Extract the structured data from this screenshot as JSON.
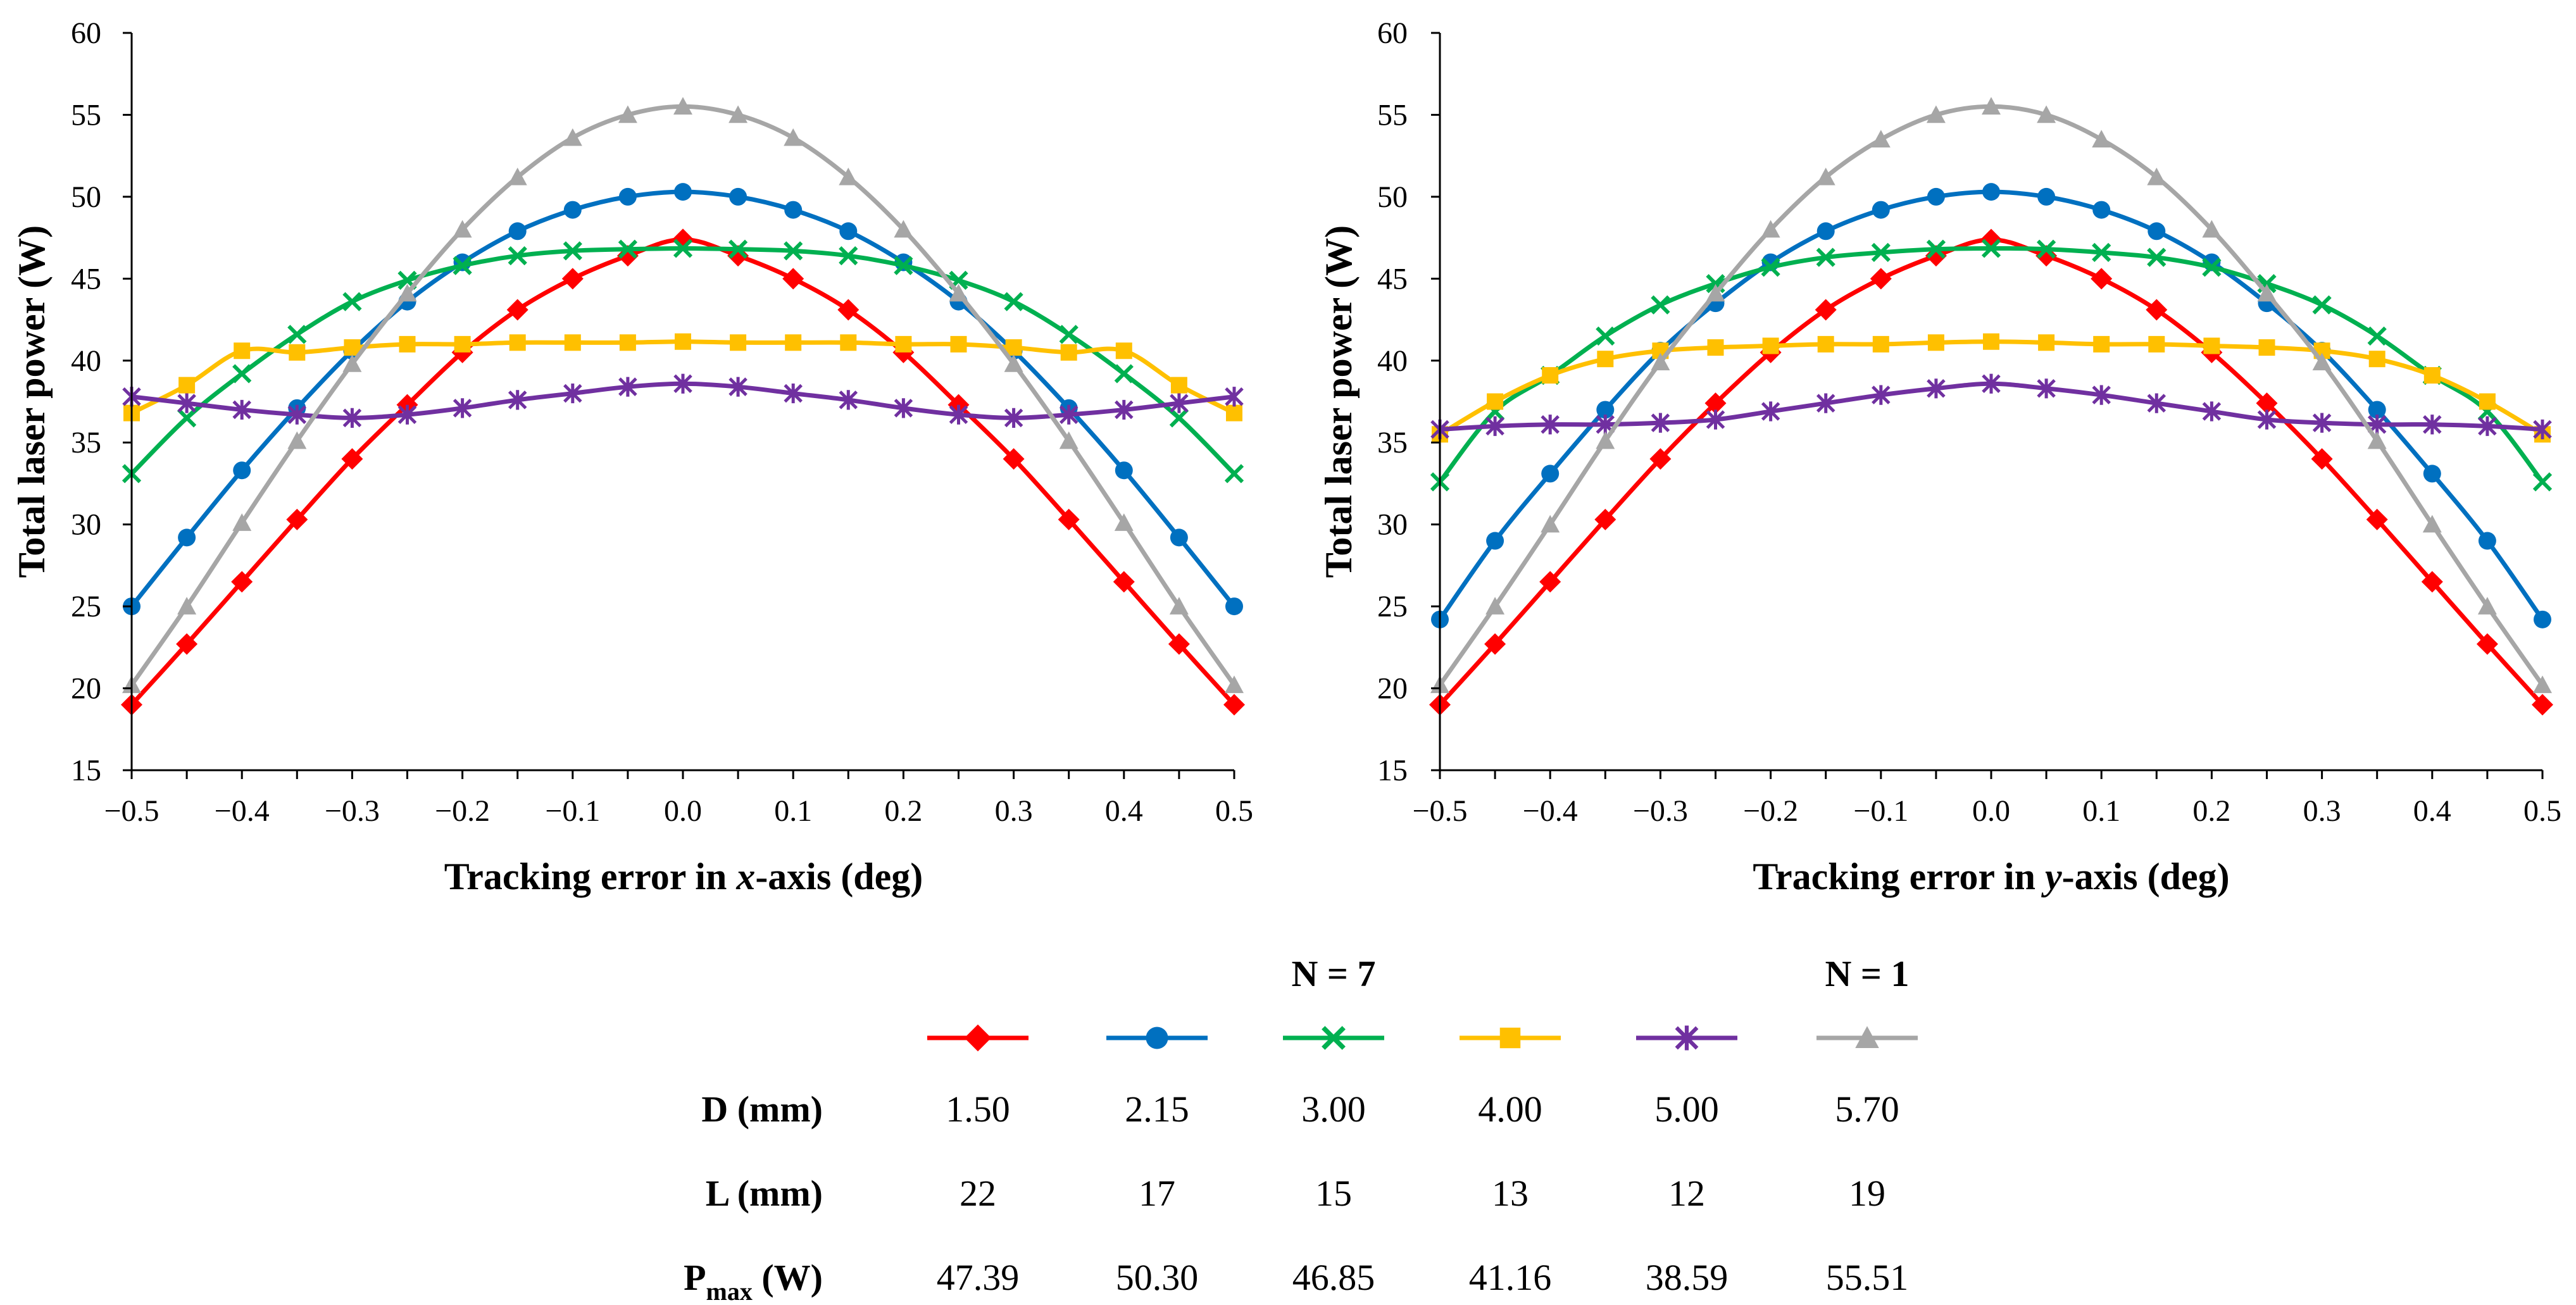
{
  "chart_data": [
    {
      "type": "line",
      "xlabel_prefix": "Tracking error in ",
      "xlabel_var": "x",
      "xlabel_suffix": "-axis (deg)",
      "ylabel": "Total laser power (W)",
      "xlim": [
        -0.5,
        0.5
      ],
      "ylim": [
        15,
        60
      ],
      "x_ticks": [
        "−0.5",
        "−0.4",
        "−0.3",
        "−0.2",
        "−0.1",
        "0.0",
        "0.1",
        "0.2",
        "0.3",
        "0.4",
        "0.5"
      ],
      "y_ticks": [
        "15",
        "20",
        "25",
        "30",
        "35",
        "40",
        "45",
        "50",
        "55",
        "60"
      ],
      "x": [
        -0.5,
        -0.45,
        -0.4,
        -0.35,
        -0.3,
        -0.25,
        -0.2,
        -0.15,
        -0.1,
        -0.05,
        0.0,
        0.05,
        0.1,
        0.15,
        0.2,
        0.25,
        0.3,
        0.35,
        0.4,
        0.45,
        0.5
      ],
      "grid": false,
      "series": [
        {
          "color": "#ff0000",
          "marker": "diamond",
          "values": [
            19.0,
            22.7,
            26.5,
            30.3,
            34.0,
            37.3,
            40.5,
            43.1,
            45.0,
            46.4,
            47.4,
            46.4,
            45.0,
            43.1,
            40.5,
            37.3,
            34.0,
            30.3,
            26.5,
            22.7,
            19.0
          ]
        },
        {
          "color": "#0070c0",
          "marker": "circle",
          "values": [
            25.0,
            29.2,
            33.3,
            37.1,
            40.6,
            43.6,
            46.0,
            47.9,
            49.2,
            50.0,
            50.3,
            50.0,
            49.2,
            47.9,
            46.0,
            43.6,
            40.6,
            37.1,
            33.3,
            29.2,
            25.0
          ]
        },
        {
          "color": "#00b050",
          "marker": "x",
          "values": [
            33.1,
            36.5,
            39.2,
            41.6,
            43.6,
            44.9,
            45.8,
            46.4,
            46.7,
            46.8,
            46.85,
            46.8,
            46.7,
            46.4,
            45.8,
            44.9,
            43.6,
            41.6,
            39.2,
            36.5,
            33.1
          ]
        },
        {
          "color": "#ffc000",
          "marker": "square",
          "values": [
            36.8,
            38.5,
            40.6,
            40.5,
            40.8,
            41.0,
            41.0,
            41.1,
            41.1,
            41.1,
            41.16,
            41.1,
            41.1,
            41.1,
            41.0,
            41.0,
            40.8,
            40.5,
            40.6,
            38.5,
            36.8
          ]
        },
        {
          "color": "#7030a0",
          "marker": "star",
          "values": [
            37.8,
            37.4,
            37.0,
            36.7,
            36.5,
            36.7,
            37.1,
            37.6,
            38.0,
            38.4,
            38.59,
            38.4,
            38.0,
            37.6,
            37.1,
            36.7,
            36.5,
            36.7,
            37.0,
            37.4,
            37.8
          ]
        },
        {
          "color": "#a6a6a6",
          "marker": "triangle",
          "values": [
            20.2,
            25.0,
            30.1,
            35.1,
            39.8,
            44.1,
            48.0,
            51.2,
            53.6,
            55.0,
            55.51,
            55.0,
            53.6,
            51.2,
            48.0,
            44.1,
            39.8,
            35.1,
            30.1,
            25.0,
            20.2
          ]
        }
      ]
    },
    {
      "type": "line",
      "xlabel_prefix": "Tracking error in ",
      "xlabel_var": "y",
      "xlabel_suffix": "-axis (deg)",
      "ylabel": "Total laser power (W)",
      "xlim": [
        -0.5,
        0.5
      ],
      "ylim": [
        15,
        60
      ],
      "x_ticks": [
        "−0.5",
        "−0.4",
        "−0.3",
        "−0.2",
        "−0.1",
        "0.0",
        "0.1",
        "0.2",
        "0.3",
        "0.4",
        "0.5"
      ],
      "y_ticks": [
        "15",
        "20",
        "25",
        "30",
        "35",
        "40",
        "45",
        "50",
        "55",
        "60"
      ],
      "x": [
        -0.5,
        -0.45,
        -0.4,
        -0.35,
        -0.3,
        -0.25,
        -0.2,
        -0.15,
        -0.1,
        -0.05,
        0.0,
        0.05,
        0.1,
        0.15,
        0.2,
        0.25,
        0.3,
        0.35,
        0.4,
        0.45,
        0.5
      ],
      "grid": false,
      "series": [
        {
          "color": "#ff0000",
          "marker": "diamond",
          "values": [
            19.0,
            22.7,
            26.5,
            30.3,
            34.0,
            37.4,
            40.5,
            43.1,
            45.0,
            46.4,
            47.39,
            46.4,
            45.0,
            43.1,
            40.5,
            37.4,
            34.0,
            30.3,
            26.5,
            22.7,
            19.0
          ]
        },
        {
          "color": "#0070c0",
          "marker": "circle",
          "values": [
            24.2,
            29.0,
            33.1,
            37.0,
            40.6,
            43.5,
            46.0,
            47.9,
            49.2,
            50.0,
            50.3,
            50.0,
            49.2,
            47.9,
            46.0,
            43.5,
            40.6,
            37.0,
            33.1,
            29.0,
            24.2
          ]
        },
        {
          "color": "#00b050",
          "marker": "x",
          "values": [
            32.6,
            36.9,
            39.1,
            41.5,
            43.4,
            44.7,
            45.7,
            46.3,
            46.6,
            46.8,
            46.85,
            46.8,
            46.6,
            46.3,
            45.7,
            44.7,
            43.4,
            41.5,
            39.1,
            36.9,
            32.6
          ]
        },
        {
          "color": "#ffc000",
          "marker": "square",
          "values": [
            35.5,
            37.5,
            39.1,
            40.1,
            40.6,
            40.8,
            40.9,
            41.0,
            41.0,
            41.1,
            41.16,
            41.1,
            41.0,
            41.0,
            40.9,
            40.8,
            40.6,
            40.1,
            39.1,
            37.5,
            35.5
          ]
        },
        {
          "color": "#7030a0",
          "marker": "star",
          "values": [
            35.8,
            36.0,
            36.1,
            36.1,
            36.2,
            36.4,
            36.9,
            37.4,
            37.9,
            38.3,
            38.59,
            38.3,
            37.9,
            37.4,
            36.9,
            36.4,
            36.2,
            36.1,
            36.1,
            36.0,
            35.8
          ]
        },
        {
          "color": "#a6a6a6",
          "marker": "triangle",
          "values": [
            20.2,
            25.0,
            30.0,
            35.1,
            39.9,
            44.1,
            48.0,
            51.2,
            53.5,
            55.0,
            55.51,
            55.0,
            53.5,
            51.2,
            48.0,
            44.1,
            39.9,
            35.1,
            30.0,
            25.0,
            20.2
          ]
        }
      ]
    }
  ],
  "legend_table": {
    "group_headers": [
      "N = 7",
      "N = 1"
    ],
    "rows": [
      {
        "label": "D (mm)",
        "values": [
          "1.50",
          "2.15",
          "3.00",
          "4.00",
          "5.00",
          "5.70"
        ]
      },
      {
        "label": "L (mm)",
        "values": [
          "22",
          "17",
          "15",
          "13",
          "12",
          "19"
        ]
      },
      {
        "label_main": "P",
        "label_sub": "max",
        "label_rest": " (W)",
        "values": [
          "47.39",
          "50.30",
          "46.85",
          "41.16",
          "38.59",
          "55.51"
        ]
      }
    ]
  }
}
